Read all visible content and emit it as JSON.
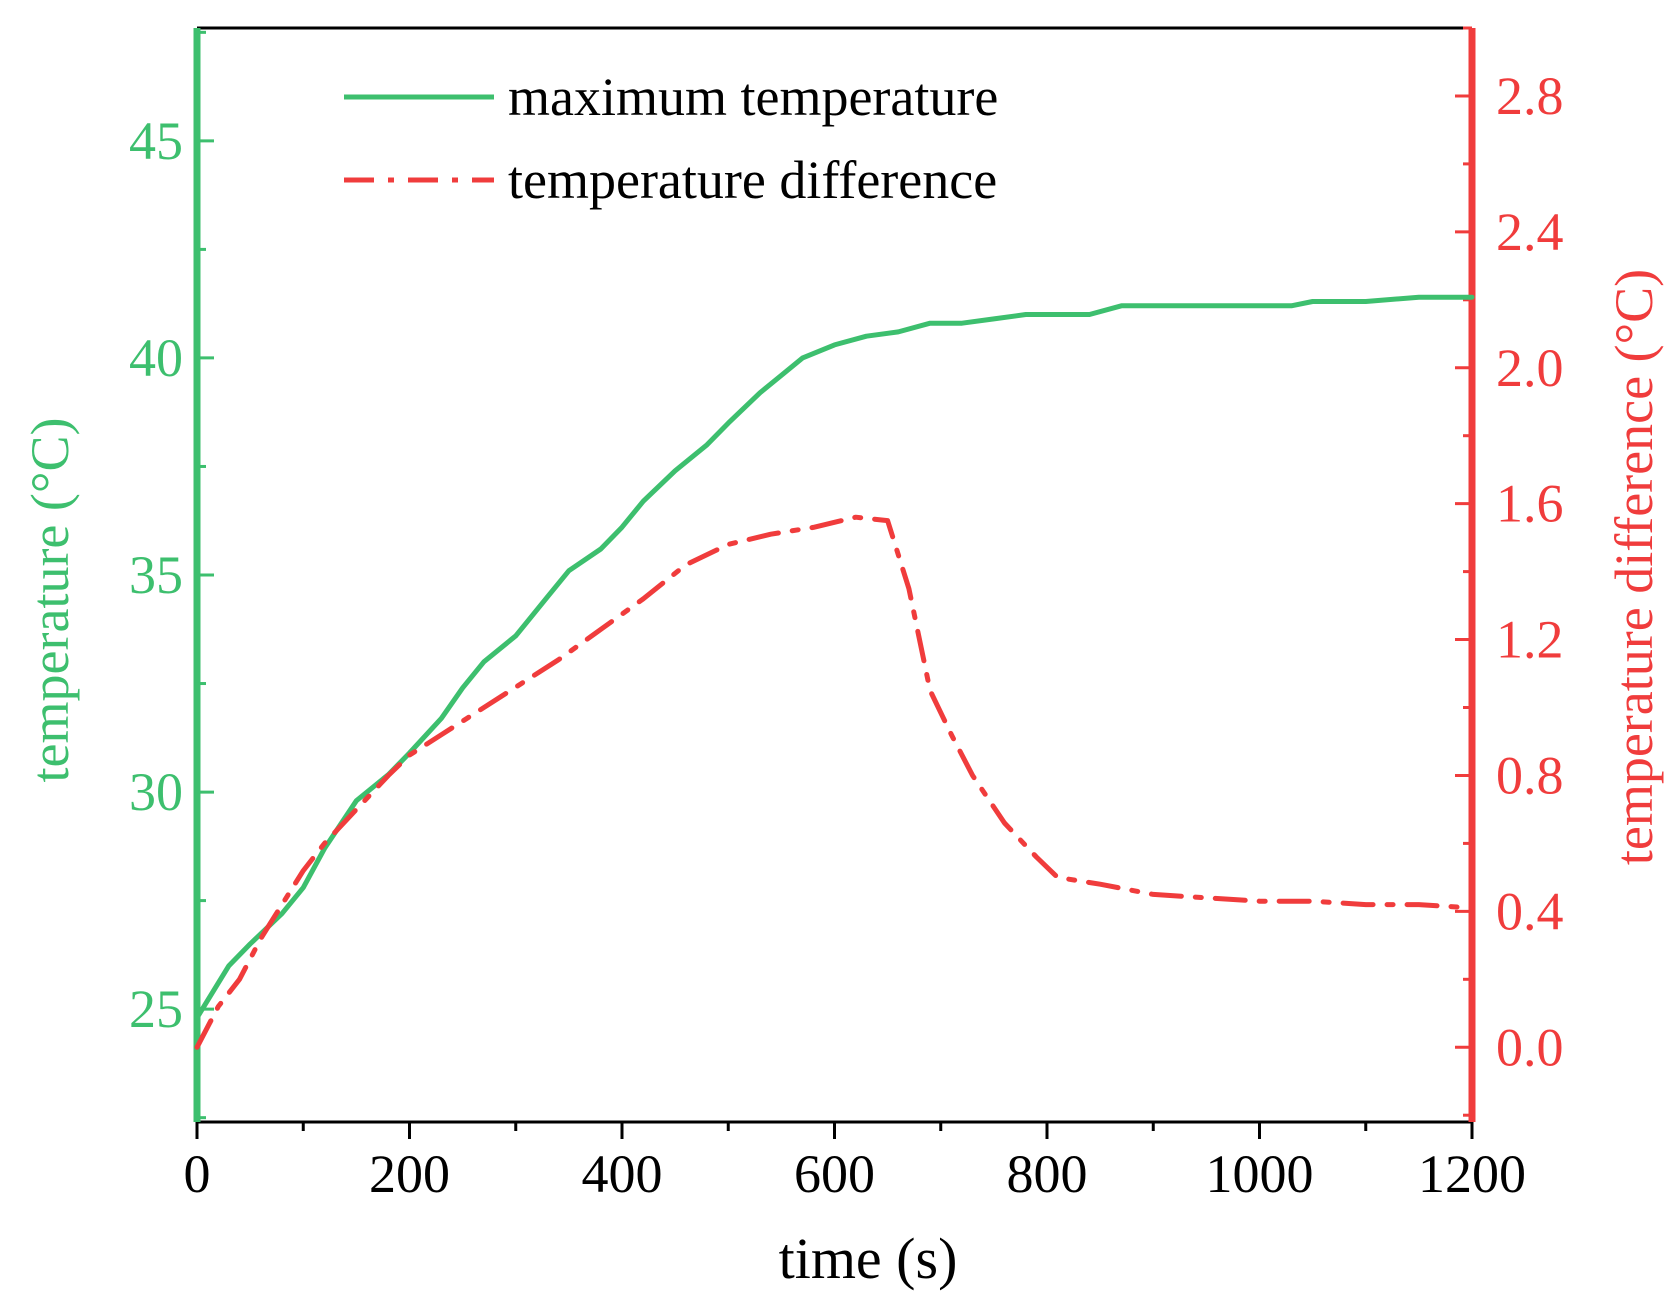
{
  "chart_data": {
    "type": "line",
    "title": "",
    "xlabel": "time (s)",
    "ylabel_left": "temperature (°C)",
    "ylabel_right": "temperature difference (°C)",
    "xlim": [
      0,
      1200
    ],
    "ylim_left": [
      22.4,
      47.6
    ],
    "ylim_right": [
      -0.22,
      3.0
    ],
    "x_ticks": [
      0,
      200,
      400,
      600,
      800,
      1000,
      1200
    ],
    "x_tick_labels": [
      "0",
      "200",
      "400",
      "600",
      "800",
      "1000",
      "1200"
    ],
    "y_left_ticks": [
      25,
      30,
      35,
      40,
      45
    ],
    "y_left_tick_labels": [
      "25",
      "30",
      "35",
      "40",
      "45"
    ],
    "y_right_ticks": [
      0.0,
      0.4,
      0.8,
      1.2,
      1.6,
      2.0,
      2.4,
      2.8
    ],
    "y_right_tick_labels": [
      "0.0",
      "0.4",
      "0.8",
      "1.2",
      "1.6",
      "2.0",
      "2.4",
      "2.8"
    ],
    "grid": false,
    "legend_position": "top-center",
    "colors": {
      "left": "#3dbf6e",
      "right": "#f03c3c",
      "frame": "#000000"
    },
    "series": [
      {
        "name": "maximum temperature",
        "axis": "left",
        "style": "solid",
        "x": [
          0,
          10,
          30,
          50,
          80,
          100,
          120,
          150,
          180,
          200,
          230,
          250,
          270,
          300,
          330,
          350,
          380,
          400,
          420,
          450,
          480,
          500,
          530,
          550,
          570,
          600,
          630,
          660,
          690,
          720,
          750,
          780,
          810,
          840,
          870,
          900,
          950,
          1000,
          1030,
          1050,
          1100,
          1150,
          1200
        ],
        "y": [
          24.8,
          25.2,
          26.0,
          26.5,
          27.2,
          27.8,
          28.7,
          29.8,
          30.4,
          30.9,
          31.7,
          32.4,
          33.0,
          33.6,
          34.5,
          35.1,
          35.6,
          36.1,
          36.7,
          37.4,
          38.0,
          38.5,
          39.2,
          39.6,
          40.0,
          40.3,
          40.5,
          40.6,
          40.8,
          40.8,
          40.9,
          41.0,
          41.0,
          41.0,
          41.2,
          41.2,
          41.2,
          41.2,
          41.2,
          41.3,
          41.3,
          41.4,
          41.4
        ]
      },
      {
        "name": "temperature difference",
        "axis": "right",
        "style": "dash-dot",
        "x": [
          0,
          20,
          40,
          60,
          80,
          100,
          120,
          150,
          180,
          200,
          230,
          260,
          300,
          340,
          380,
          420,
          460,
          500,
          540,
          580,
          620,
          650,
          670,
          690,
          710,
          730,
          760,
          790,
          810,
          850,
          900,
          950,
          1000,
          1050,
          1100,
          1150,
          1200
        ],
        "y": [
          0.0,
          0.12,
          0.2,
          0.32,
          0.42,
          0.52,
          0.6,
          0.7,
          0.8,
          0.86,
          0.92,
          0.98,
          1.06,
          1.14,
          1.23,
          1.32,
          1.42,
          1.48,
          1.51,
          1.53,
          1.56,
          1.55,
          1.35,
          1.05,
          0.92,
          0.8,
          0.66,
          0.56,
          0.5,
          0.48,
          0.45,
          0.44,
          0.43,
          0.43,
          0.42,
          0.42,
          0.41
        ]
      }
    ]
  }
}
